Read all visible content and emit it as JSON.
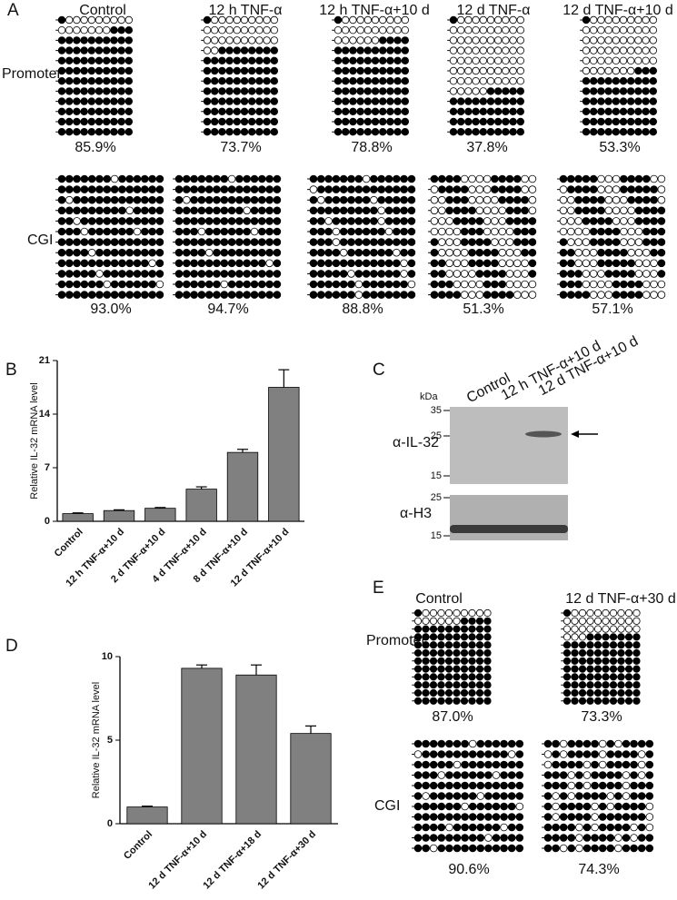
{
  "panel_letters": [
    "A",
    "B",
    "C",
    "D",
    "E"
  ],
  "panel_a": {
    "columns": [
      "Control",
      "12 h TNF-α",
      "12 h TNF-α+10 d",
      "12 d TNF-α",
      "12 d TNF-α+10 d"
    ],
    "rows": [
      {
        "label": "Promoter",
        "values": [
          85.9,
          73.7,
          78.8,
          37.8,
          53.3
        ],
        "value_labels": [
          "85.9%",
          "73.7%",
          "78.8%",
          "37.8%",
          "53.3%"
        ]
      },
      {
        "label": "CGI",
        "values": [
          93.0,
          94.7,
          88.8,
          51.3,
          57.1
        ],
        "value_labels": [
          "93.0%",
          "94.7%",
          "88.8%",
          "51.3%",
          "57.1%"
        ]
      }
    ]
  },
  "chart_data": [
    {
      "type": "bar",
      "y_label": "Relative IL-32 mRNA level",
      "categories": [
        "Control",
        "12 h TNF-α+10 d",
        "2 d TNF-α+10 d",
        "4 d TNF-α+10 d",
        "8 d TNF-α+10 d",
        "12 d TNF-α+10 d"
      ],
      "values": [
        1.0,
        1.4,
        1.7,
        4.2,
        9.0,
        17.5
      ],
      "errors": [
        0.1,
        0.1,
        0.1,
        0.3,
        0.4,
        2.3
      ],
      "color": "#808080",
      "ylim": [
        0,
        21
      ],
      "yticks": [
        0,
        7,
        14,
        21
      ]
    },
    {
      "type": "bar",
      "y_label": "Relative IL-32 mRNA level",
      "categories": [
        "Control",
        "12 d TNF-α+10 d",
        "12 d TNF-α+18 d",
        "12 d TNF-α+30 d"
      ],
      "values": [
        1.0,
        9.3,
        8.9,
        5.4
      ],
      "errors": [
        0.05,
        0.2,
        0.6,
        0.45
      ],
      "color": "#808080",
      "ylim": [
        0,
        10
      ],
      "yticks": [
        0,
        5,
        10
      ]
    }
  ],
  "panel_c": {
    "lanes": [
      "Control",
      "12 h TNF-α+10 d",
      "12 d TNF-α+10 d"
    ],
    "unit": "kDa",
    "blots": [
      {
        "label": "α-IL-32",
        "markers": [
          "35",
          "25",
          "15"
        ]
      },
      {
        "label": "α-H3",
        "markers": [
          "25",
          "15"
        ]
      }
    ]
  },
  "panel_e": {
    "columns": [
      "Control",
      "12 d TNF-α+30 d"
    ],
    "rows": [
      {
        "label": "Promoter",
        "values": [
          87.0,
          73.3
        ],
        "value_labels": [
          "87.0%",
          "73.3%"
        ]
      },
      {
        "label": "CGI",
        "values": [
          90.6,
          74.3
        ],
        "value_labels": [
          "90.6%",
          "74.3%"
        ]
      }
    ]
  }
}
